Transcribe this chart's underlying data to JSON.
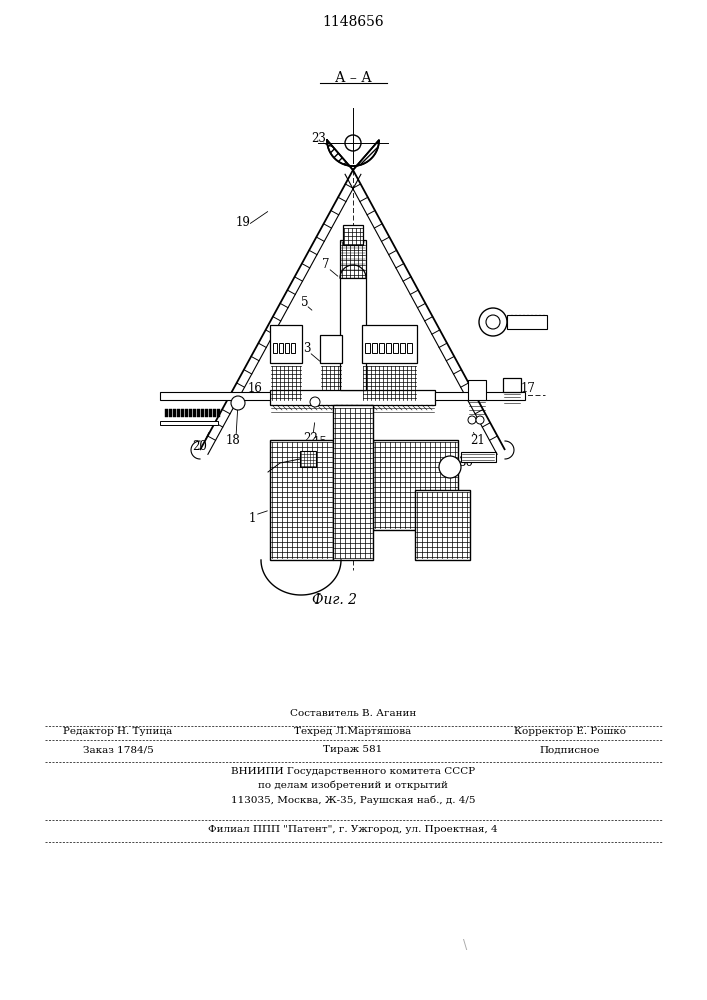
{
  "patent_number": "1148656",
  "fig_label": "Фиг. 2",
  "section_label": "А – А",
  "bg_color": "#ffffff",
  "line_color": "#000000",
  "footer_fontsize": 7.5,
  "label_fontsize": 8.5,
  "footer": {
    "sestavitel": "Составитель В. Аганин",
    "redaktor": "Редактор Н. Тупица",
    "tehred": "Техред Л.Мартяшова",
    "korrektor": "Корректор Е. Рошко",
    "zakaz": "Заказ 1784/5",
    "tirazh": "Тираж 581",
    "podpisnoe": "Подписное",
    "vniip1": "ВНИИПИ Государственного комитета СССР",
    "vniip2": "по делам изобретений и открытий",
    "vniip3": "113035, Москва, Ж-35, Раушская наб., д. 4/5",
    "filial": "Филиал ППП \"Патент\", г. Ужгород, ул. Проектная, 4"
  }
}
